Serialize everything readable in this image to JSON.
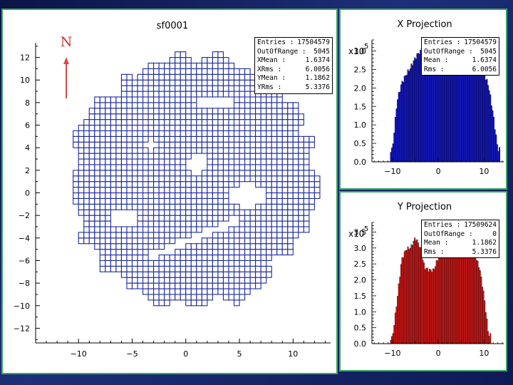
{
  "colors": {
    "map_fill": "#ffffff",
    "map_edge": "#1c2a9c",
    "x_hist": "#1418d6",
    "y_hist": "#e01818",
    "north_arrow": "#d94b45"
  },
  "north_label": "N",
  "chart_data": [
    {
      "type": "heatmap",
      "title": "sf0001",
      "xlim": [
        -14,
        13.5
      ],
      "ylim": [
        -13.3,
        13.3
      ],
      "xticks": [
        -10,
        -5,
        0,
        5,
        10
      ],
      "yticks": [
        12,
        10,
        8,
        6,
        4,
        2,
        0,
        -2,
        -4,
        -6,
        -8,
        -10,
        -12
      ],
      "stats": [
        {
          "label": "Entries :",
          "value": "17504579"
        },
        {
          "label": "OutOfRange :",
          "value": "5045"
        },
        {
          "label": "XMean :",
          "value": "1.6374"
        },
        {
          "label": "XRms :",
          "value": "6.0056"
        },
        {
          "label": "YMean :",
          "value": "1.1862"
        },
        {
          "label": "YRms :",
          "value": "5.3376"
        }
      ]
    },
    {
      "type": "bar",
      "title": "X Projection",
      "scale_label": "x10",
      "scale_exp": "5",
      "xlim": [
        -14.5,
        14.3
      ],
      "ylim": [
        0,
        3.3
      ],
      "xticks": [
        -10,
        0,
        10
      ],
      "yticks": [
        0.0,
        0.5,
        1.0,
        1.5,
        2.0,
        2.5,
        3.0
      ],
      "ytick_labels": [
        "0.0",
        "0.5",
        "1.0",
        "1.5",
        "2.0",
        "2.5",
        "3.0"
      ],
      "x": [
        -10,
        -9,
        -8,
        -7,
        -6,
        -5,
        -4,
        -3,
        -2,
        -1,
        0,
        1,
        2,
        3,
        4,
        5,
        6,
        7,
        8,
        9,
        10,
        11,
        12,
        13
      ],
      "values": [
        0.35,
        1.6,
        2.1,
        2.4,
        2.6,
        2.8,
        2.95,
        2.85,
        2.55,
        2.45,
        2.65,
        2.85,
        2.7,
        2.5,
        2.6,
        2.85,
        2.95,
        2.75,
        2.5,
        2.35,
        2.4,
        2.1,
        1.3,
        0.3
      ],
      "stats": [
        {
          "label": "Entries :",
          "value": "17504579"
        },
        {
          "label": "OutOfRange :",
          "value": "5045"
        },
        {
          "label": "Mean :",
          "value": "1.6374"
        },
        {
          "label": "Rms :",
          "value": "6.0056"
        }
      ]
    },
    {
      "type": "bar",
      "title": "Y Projection",
      "scale_label": "x10",
      "scale_exp": "5",
      "xlim": [
        -14.5,
        14.3
      ],
      "ylim": [
        0,
        3.8
      ],
      "xticks": [
        -10,
        0,
        10
      ],
      "yticks": [
        0.0,
        0.5,
        1.0,
        1.5,
        2.0,
        2.5,
        3.0,
        3.5
      ],
      "ytick_labels": [
        "0.0",
        "0.5",
        "1.0",
        "1.5",
        "2.0",
        "2.5",
        "3.0",
        "3.5"
      ],
      "x": [
        -10,
        -9,
        -8,
        -7,
        -6,
        -5,
        -4,
        -3,
        -2,
        -1,
        0,
        1,
        2,
        3,
        4,
        5,
        6,
        7,
        8,
        9,
        10,
        11
      ],
      "values": [
        0.2,
        1.3,
        2.6,
        3.0,
        3.05,
        3.3,
        3.0,
        2.4,
        2.35,
        2.3,
        2.65,
        3.05,
        3.35,
        3.35,
        3.4,
        3.3,
        3.15,
        3.0,
        2.75,
        2.35,
        1.5,
        0.3
      ],
      "stats": [
        {
          "label": "Entries :",
          "value": "17509624"
        },
        {
          "label": "OutOfRange :",
          "value": "0"
        },
        {
          "label": "Mean :",
          "value": "1.1862"
        },
        {
          "label": "Rms :",
          "value": "5.3376"
        }
      ]
    }
  ]
}
